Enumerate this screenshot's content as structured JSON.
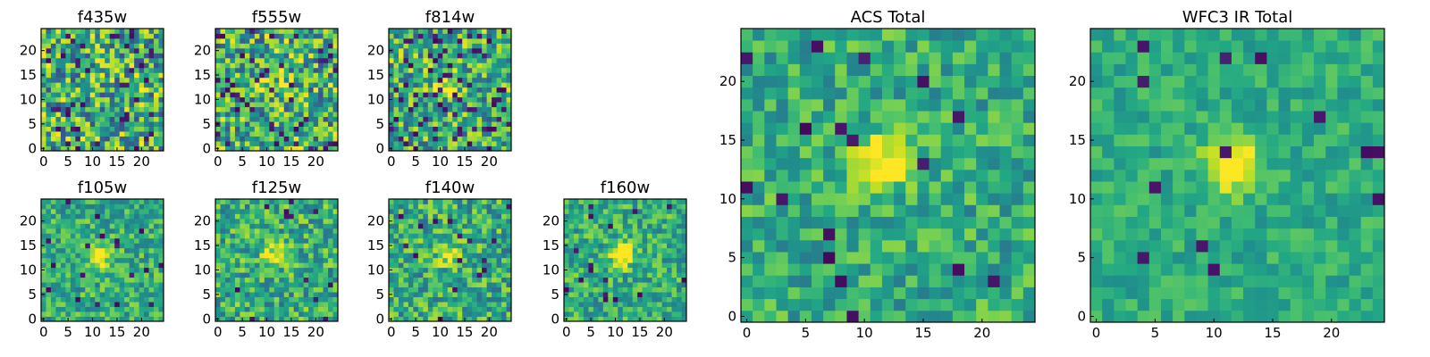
{
  "chart_data": [
    {
      "type": "heatmap",
      "title": "f435w",
      "colormap": "viridis",
      "grid_size": 25,
      "xlim": [
        0,
        24
      ],
      "ylim": [
        0,
        24
      ],
      "xticks": [
        0,
        5,
        10,
        15,
        20
      ],
      "yticks": [
        0,
        5,
        10,
        15,
        20
      ],
      "source_peak": 0.0,
      "noise_level": 1.0,
      "dark_pixel_fraction": 0.08
    },
    {
      "type": "heatmap",
      "title": "f555w",
      "colormap": "viridis",
      "grid_size": 25,
      "xlim": [
        0,
        24
      ],
      "ylim": [
        0,
        24
      ],
      "xticks": [
        0,
        5,
        10,
        15,
        20
      ],
      "yticks": [
        0,
        5,
        10,
        15,
        20
      ],
      "source_peak": 0.3,
      "noise_level": 1.0,
      "dark_pixel_fraction": 0.08
    },
    {
      "type": "heatmap",
      "title": "f814w",
      "colormap": "viridis",
      "grid_size": 25,
      "xlim": [
        0,
        24
      ],
      "ylim": [
        0,
        24
      ],
      "xticks": [
        0,
        5,
        10,
        15,
        20
      ],
      "yticks": [
        0,
        5,
        10,
        15,
        20
      ],
      "source_peak": 0.8,
      "noise_level": 0.9,
      "dark_pixel_fraction": 0.08
    },
    {
      "type": "heatmap",
      "title": "f105w",
      "colormap": "viridis",
      "grid_size": 25,
      "xlim": [
        0,
        24
      ],
      "ylim": [
        0,
        24
      ],
      "xticks": [
        0,
        5,
        10,
        15,
        20
      ],
      "yticks": [
        0,
        5,
        10,
        15,
        20
      ],
      "source_peak": 0.9,
      "noise_level": 0.6,
      "dark_pixel_fraction": 0.03
    },
    {
      "type": "heatmap",
      "title": "f125w",
      "colormap": "viridis",
      "grid_size": 25,
      "xlim": [
        0,
        24
      ],
      "ylim": [
        0,
        24
      ],
      "xticks": [
        0,
        5,
        10,
        15,
        20
      ],
      "yticks": [
        0,
        5,
        10,
        15,
        20
      ],
      "source_peak": 0.6,
      "noise_level": 0.7,
      "dark_pixel_fraction": 0.03
    },
    {
      "type": "heatmap",
      "title": "f140w",
      "colormap": "viridis",
      "grid_size": 25,
      "xlim": [
        0,
        24
      ],
      "ylim": [
        0,
        24
      ],
      "xticks": [
        0,
        5,
        10,
        15,
        20
      ],
      "yticks": [
        0,
        5,
        10,
        15,
        20
      ],
      "source_peak": 0.6,
      "noise_level": 0.7,
      "dark_pixel_fraction": 0.03
    },
    {
      "type": "heatmap",
      "title": "f160w",
      "colormap": "viridis",
      "grid_size": 25,
      "xlim": [
        0,
        24
      ],
      "ylim": [
        0,
        24
      ],
      "xticks": [
        0,
        5,
        10,
        15,
        20
      ],
      "yticks": [
        0,
        5,
        10,
        15,
        20
      ],
      "source_peak": 1.0,
      "noise_level": 0.6,
      "dark_pixel_fraction": 0.03
    },
    {
      "type": "heatmap",
      "title": "ACS Total",
      "colormap": "viridis",
      "grid_size": 25,
      "xlim": [
        0,
        24
      ],
      "ylim": [
        0,
        24
      ],
      "xticks": [
        0,
        5,
        10,
        15,
        20
      ],
      "yticks": [
        0,
        5,
        10,
        15,
        20
      ],
      "source_peak": 1.0,
      "noise_level": 0.55,
      "dark_pixel_fraction": 0.04
    },
    {
      "type": "heatmap",
      "title": "WFC3 IR Total",
      "colormap": "viridis",
      "grid_size": 25,
      "xlim": [
        0,
        24
      ],
      "ylim": [
        0,
        24
      ],
      "xticks": [
        0,
        5,
        10,
        15,
        20
      ],
      "yticks": [
        0,
        5,
        10,
        15,
        20
      ],
      "source_peak": 1.0,
      "noise_level": 0.35,
      "dark_pixel_fraction": 0.015
    }
  ]
}
